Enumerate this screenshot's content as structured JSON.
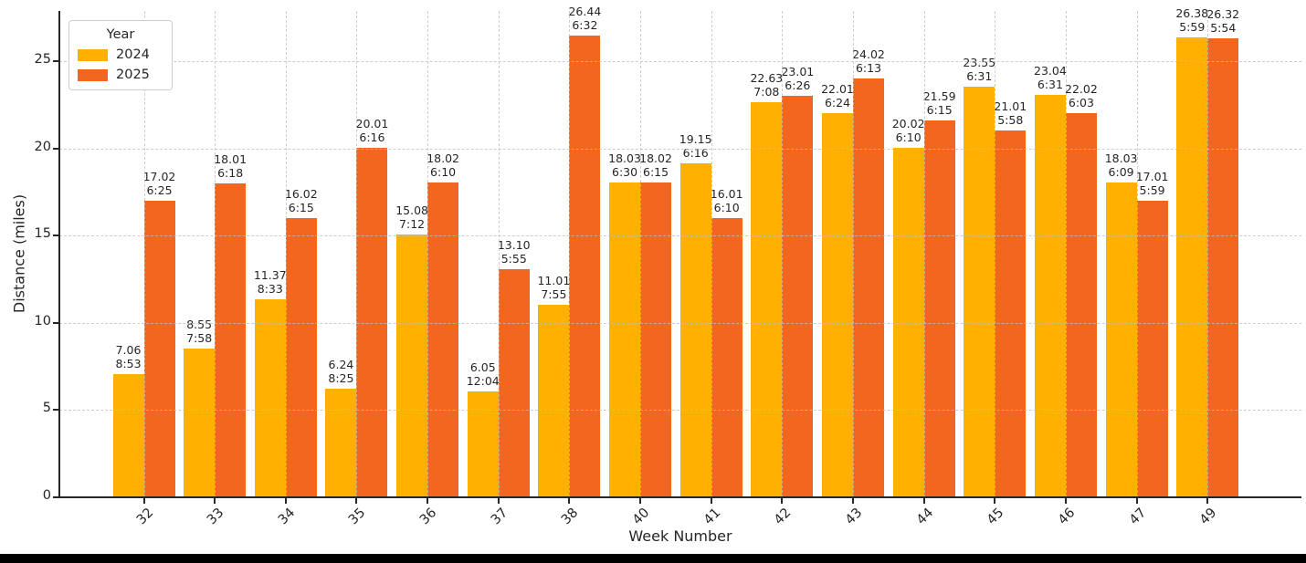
{
  "chart_data": {
    "type": "bar",
    "title": "",
    "xlabel": "Week Number",
    "ylabel": "Distance (miles)",
    "categories": [
      "32",
      "33",
      "34",
      "35",
      "36",
      "37",
      "38",
      "40",
      "41",
      "42",
      "43",
      "44",
      "45",
      "46",
      "47",
      "49"
    ],
    "yticks": [
      0,
      5,
      10,
      15,
      20,
      25
    ],
    "ylim": [
      0,
      27.9
    ],
    "grid": true,
    "legend_title": "Year",
    "legend_position": "upper-left",
    "bar_label_lines": [
      "distance_miles",
      "pace_per_mile"
    ],
    "series": [
      {
        "name": "2024",
        "color": "#FFB000",
        "values": [
          7.06,
          8.55,
          11.37,
          6.24,
          15.08,
          6.05,
          11.01,
          18.03,
          19.15,
          22.63,
          22.01,
          20.02,
          23.55,
          23.04,
          18.03,
          26.38
        ],
        "paces": [
          "8:53",
          "7:58",
          "8:33",
          "8:25",
          "7:12",
          "12:04",
          "7:55",
          "6:30",
          "6:16",
          "7:08",
          "6:24",
          "6:10",
          "6:31",
          "6:31",
          "6:09",
          "5:59"
        ]
      },
      {
        "name": "2025",
        "color": "#F2661F",
        "values": [
          17.02,
          18.01,
          16.02,
          20.01,
          18.02,
          13.1,
          26.44,
          18.02,
          16.01,
          23.01,
          24.02,
          21.59,
          21.01,
          22.02,
          17.01,
          26.32
        ],
        "paces": [
          "6:25",
          "6:18",
          "6:15",
          "6:16",
          "6:10",
          "5:55",
          "6:32",
          "6:15",
          "6:10",
          "6:26",
          "6:13",
          "6:15",
          "5:58",
          "6:03",
          "5:59",
          "5:54"
        ]
      }
    ]
  },
  "colors": {
    "axis": "#262626",
    "text": "#262626",
    "grid": "#bebebe",
    "background": "#ffffff",
    "bottom_strip": "#000000"
  }
}
